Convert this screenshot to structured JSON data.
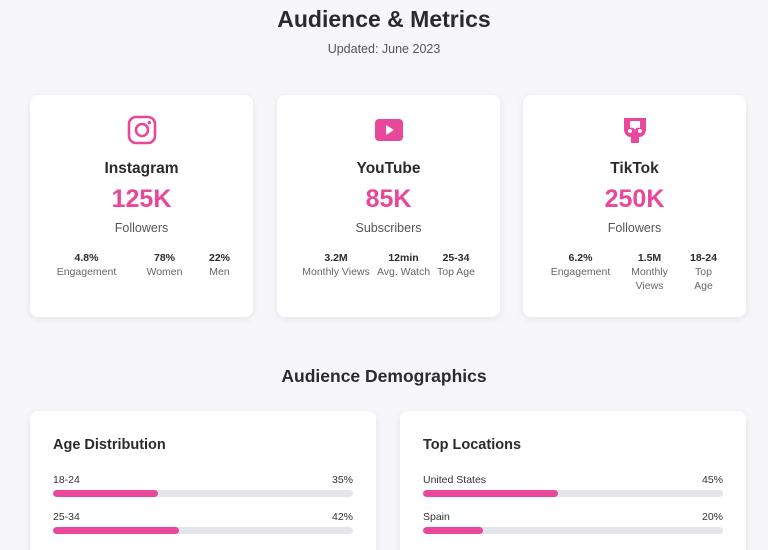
{
  "header": {
    "title": "Audience & Metrics",
    "subtitle": "Updated: June 2023"
  },
  "platforms": [
    {
      "name": "Instagram",
      "icon": "instagram-icon",
      "count": "125K",
      "unit": "Followers",
      "stats": [
        {
          "value": "4.8%",
          "label": "Engagement"
        },
        {
          "value": "78%",
          "label": "Women"
        },
        {
          "value": "22%",
          "label": "Men"
        }
      ]
    },
    {
      "name": "YouTube",
      "icon": "youtube-icon",
      "count": "85K",
      "unit": "Subscribers",
      "stats": [
        {
          "value": "3.2M",
          "label": "Monthly Views"
        },
        {
          "value": "12min",
          "label": "Avg. Watch"
        },
        {
          "value": "25-34",
          "label": "Top Age"
        }
      ]
    },
    {
      "name": "TikTok",
      "icon": "tiktok-icon",
      "count": "250K",
      "unit": "Followers",
      "stats": [
        {
          "value": "6.2%",
          "label": "Engagement"
        },
        {
          "value": "1.5M",
          "label": "Monthly Views"
        },
        {
          "value": "18-24",
          "label": "Top Age"
        }
      ]
    }
  ],
  "demographics": {
    "title": "Audience Demographics",
    "age": {
      "title": "Age Distribution",
      "rows": [
        {
          "label": "18-24",
          "value": "35%",
          "fraction": 0.35
        },
        {
          "label": "25-34",
          "value": "42%",
          "fraction": 0.42
        }
      ]
    },
    "locations": {
      "title": "Top Locations",
      "rows": [
        {
          "label": "United States",
          "value": "45%",
          "fraction": 0.45
        },
        {
          "label": "Spain",
          "value": "20%",
          "fraction": 0.2
        }
      ]
    }
  },
  "colors": {
    "accent": "#e8479a",
    "track": "#e5e5ec",
    "background": "#f7f7fa"
  }
}
